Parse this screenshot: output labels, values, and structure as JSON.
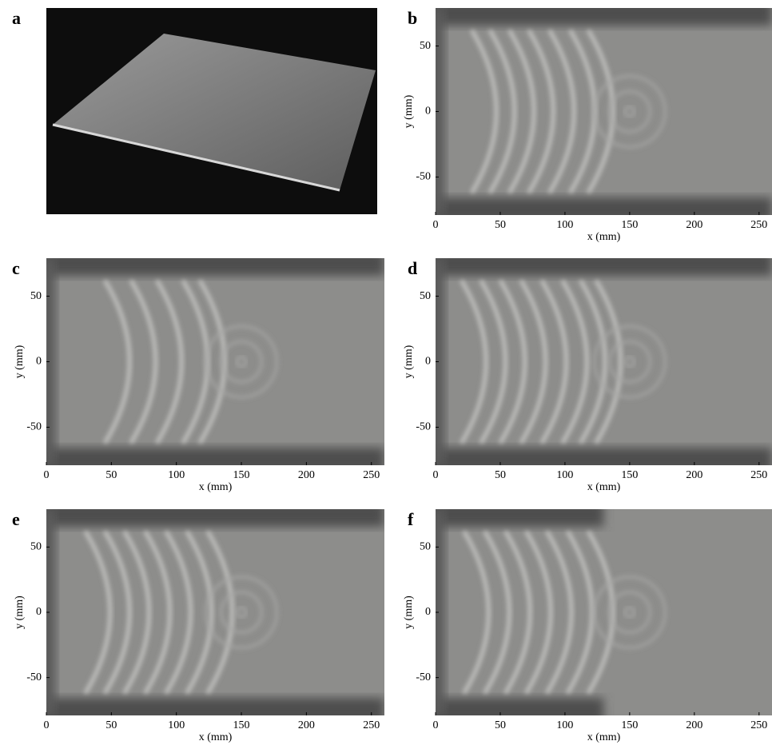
{
  "panels": [
    {
      "label": "a"
    },
    {
      "label": "b",
      "xlabel": "x (mm)",
      "ylabel": "y (mm)",
      "xlim": [
        0,
        260
      ],
      "ylim": [
        -79,
        79
      ],
      "xticks": [
        0,
        50,
        100,
        150,
        200,
        250
      ],
      "yticks": [
        -50,
        0,
        50
      ]
    },
    {
      "label": "c",
      "xlabel": "x (mm)",
      "ylabel": "y (mm)",
      "xlim": [
        0,
        260
      ],
      "ylim": [
        -79,
        79
      ],
      "xticks": [
        0,
        50,
        100,
        150,
        200,
        250
      ],
      "yticks": [
        -50,
        0,
        50
      ]
    },
    {
      "label": "d",
      "xlabel": "x (mm)",
      "ylabel": "y (mm)",
      "xlim": [
        0,
        260
      ],
      "ylim": [
        -79,
        79
      ],
      "xticks": [
        0,
        50,
        100,
        150,
        200,
        250
      ],
      "yticks": [
        -50,
        0,
        50
      ]
    },
    {
      "label": "e",
      "xlabel": "x (mm)",
      "ylabel": "y (mm)",
      "xlim": [
        0,
        260
      ],
      "ylim": [
        -79,
        79
      ],
      "xticks": [
        0,
        50,
        100,
        150,
        200,
        250
      ],
      "yticks": [
        -50,
        0,
        50
      ]
    },
    {
      "label": "f",
      "xlabel": "x (mm)",
      "ylabel": "y (mm)",
      "xlim": [
        0,
        260
      ],
      "ylim": [
        -79,
        79
      ],
      "xticks": [
        0,
        50,
        100,
        150,
        200,
        250
      ],
      "yticks": [
        -50,
        0,
        50
      ]
    }
  ]
}
